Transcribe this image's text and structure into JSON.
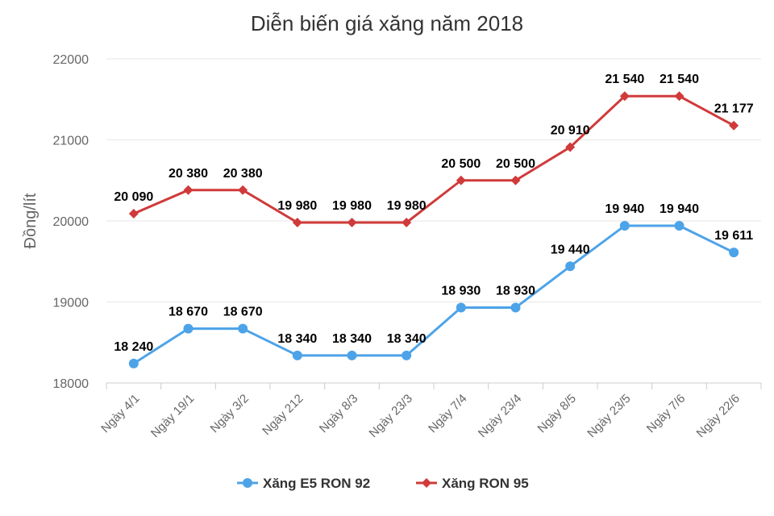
{
  "chart_data": {
    "type": "line",
    "title": "Diễn biến giá xăng năm 2018",
    "xlabel": "",
    "ylabel": "Đồng/lít",
    "ylim": [
      18000,
      22000
    ],
    "yticks": [
      "18000",
      "19000",
      "20000",
      "21000",
      "22000"
    ],
    "grid": true,
    "legend_position": "bottom",
    "categories": [
      "Ngày 4/1",
      "Ngày 19/1",
      "Ngày 3/2",
      "Ngày 212",
      "Ngày 8/3",
      "Ngày 23/3",
      "Ngày 7/4",
      "Ngày 23/4",
      "Ngày 8/5",
      "Ngày 23/5",
      "Ngày 7/6",
      "Ngày 22/6"
    ],
    "series": [
      {
        "name": "Xăng E5 RON 92",
        "color": "#4da3e8",
        "marker": "circle",
        "values": [
          18240,
          18670,
          18670,
          18340,
          18340,
          18340,
          18930,
          18930,
          19440,
          19940,
          19940,
          19611
        ],
        "labels": [
          "18 240",
          "18 670",
          "18 670",
          "18 340",
          "18 340",
          "18 340",
          "18 930",
          "18 930",
          "19 440",
          "19 940",
          "19 940",
          "19 611"
        ]
      },
      {
        "name": "Xăng RON 95",
        "color": "#d03a3a",
        "marker": "diamond",
        "values": [
          20090,
          20380,
          20380,
          19980,
          19980,
          19980,
          20500,
          20500,
          20910,
          21540,
          21540,
          21177
        ],
        "labels": [
          "20 090",
          "20 380",
          "20 380",
          "19 980",
          "19 980",
          "19 980",
          "20 500",
          "20 500",
          "20 910",
          "21 540",
          "21 540",
          "21 177"
        ]
      }
    ]
  }
}
